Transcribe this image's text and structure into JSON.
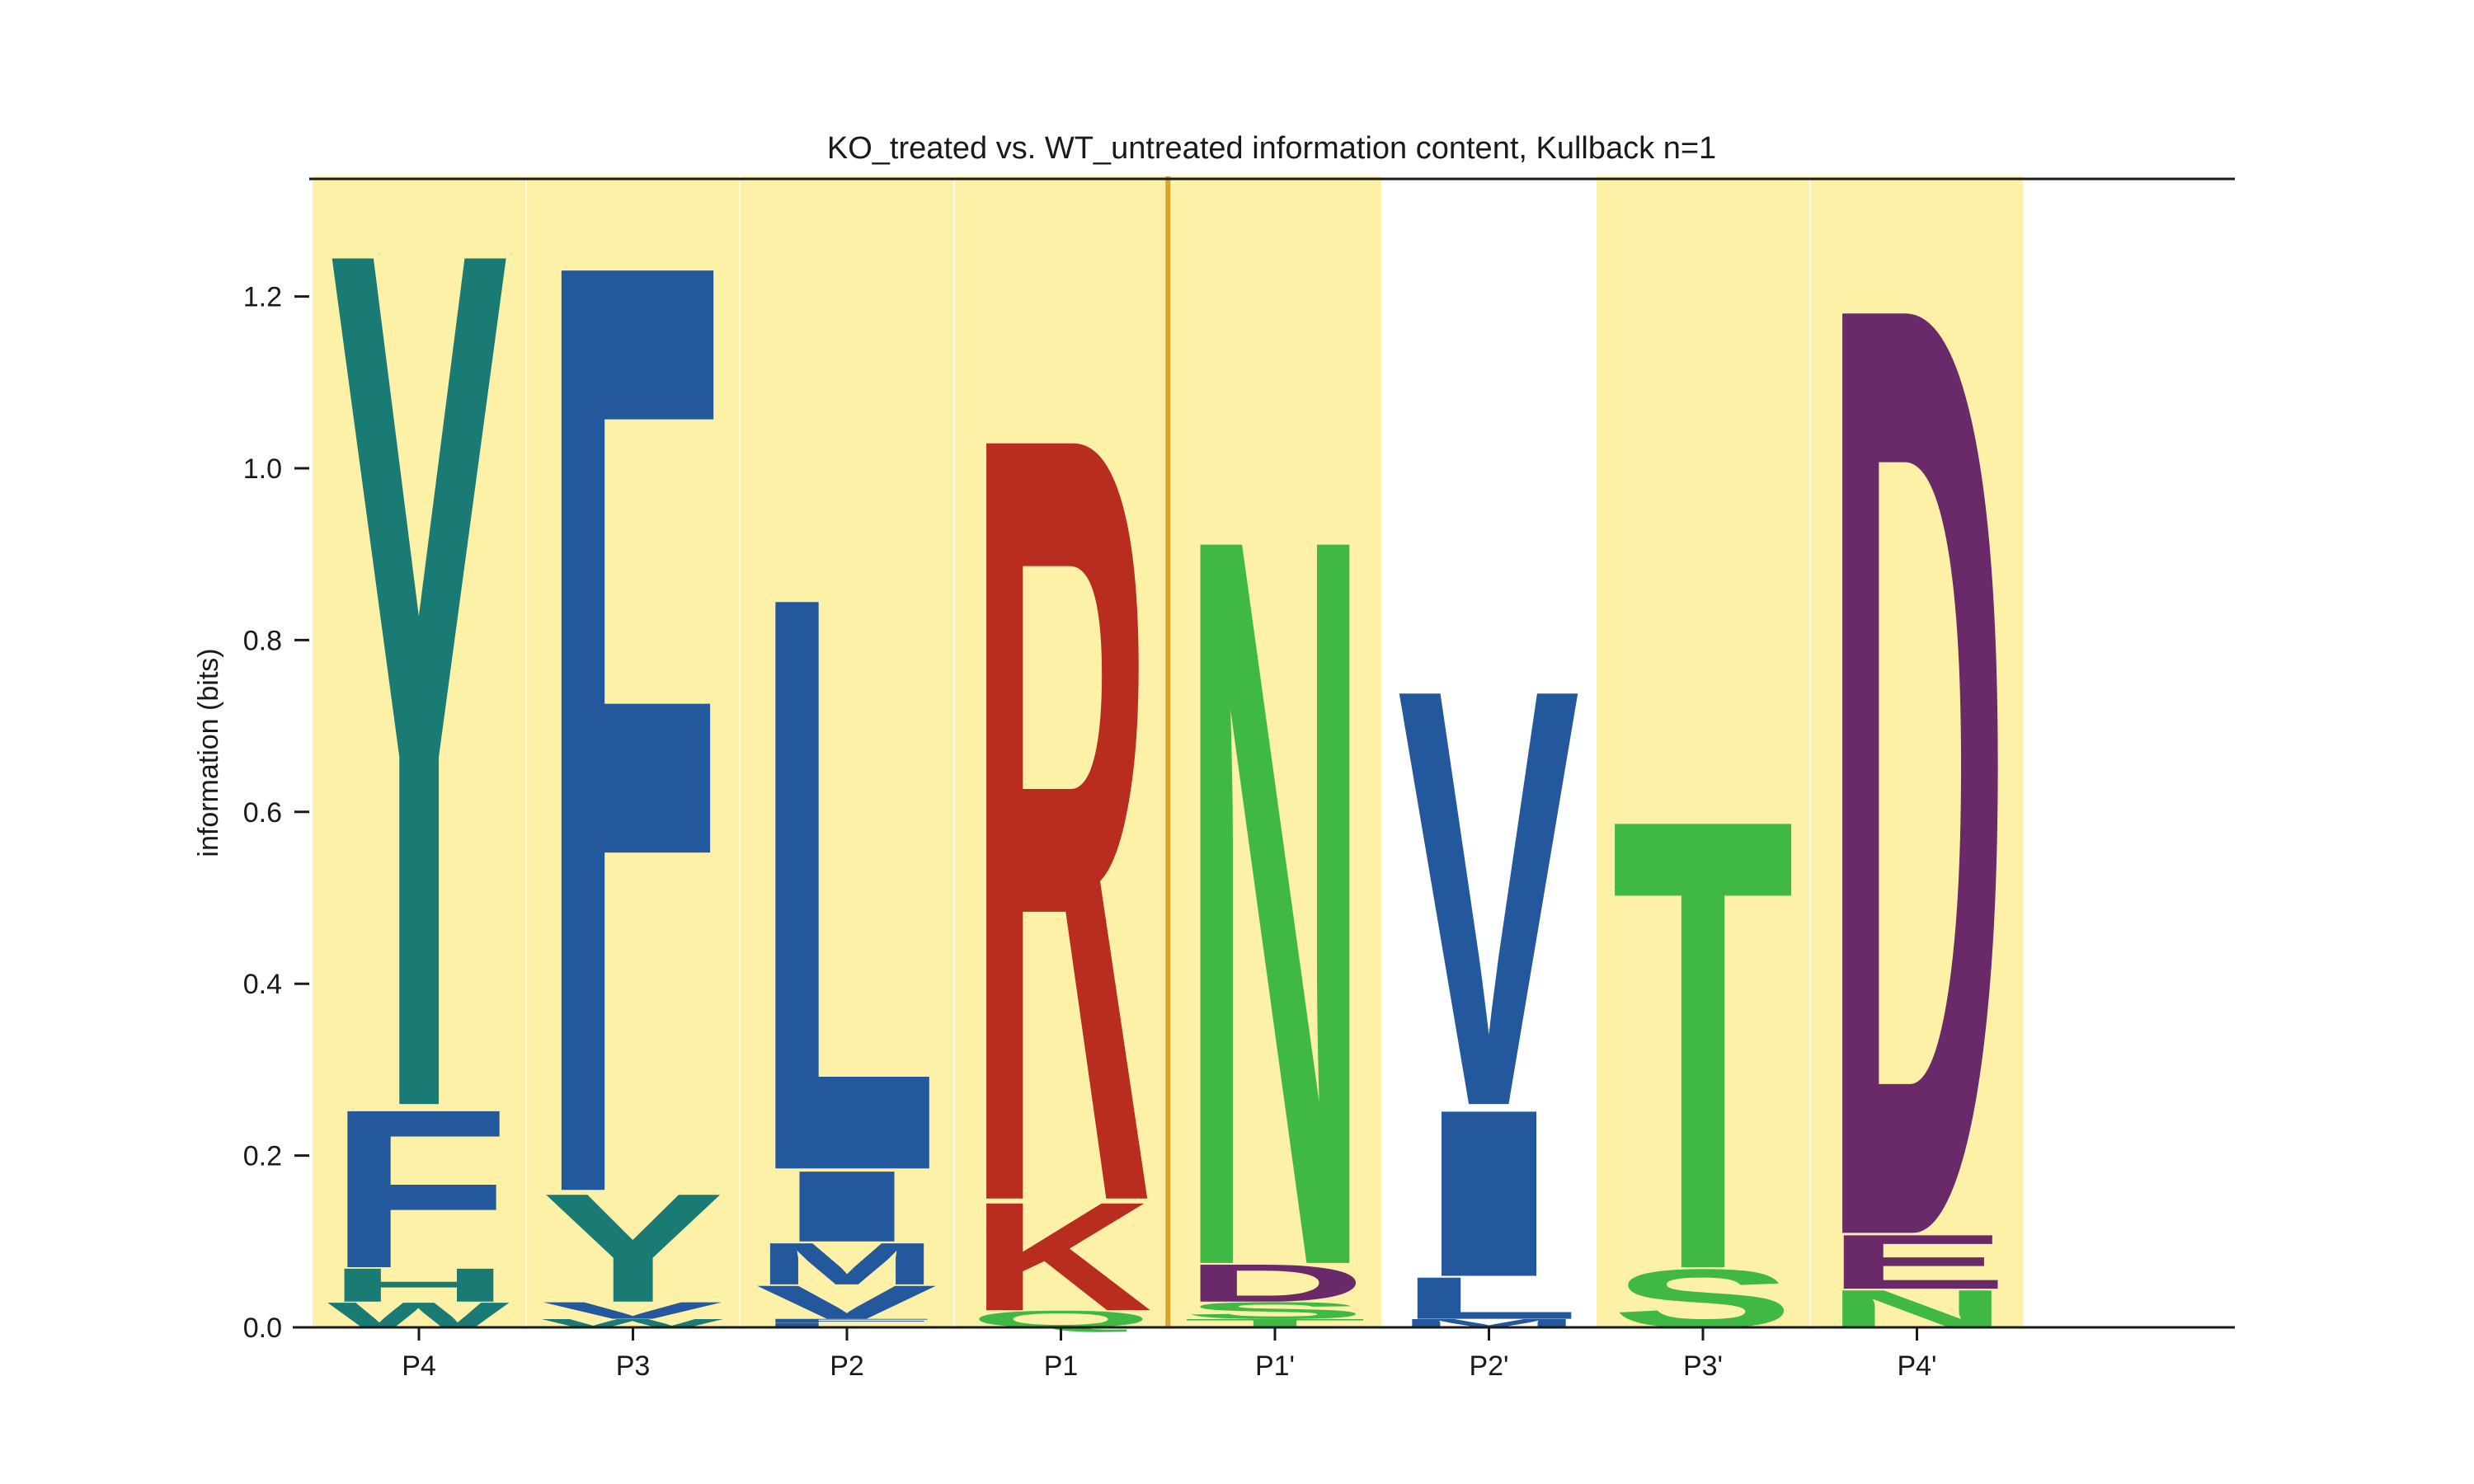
{
  "chart_data": {
    "type": "sequence-logo",
    "title": "KO_treated vs. WT_untreated information content, Kullback n=1",
    "xlabel": "",
    "ylabel": "information (bits)",
    "ylim": [
      0,
      1.34
    ],
    "yticks": [
      "0.0",
      "0.2",
      "0.4",
      "0.6",
      "0.8",
      "1.0",
      "1.2"
    ],
    "positions": [
      "P4",
      "P3",
      "P2",
      "P1",
      "P1'",
      "P2'",
      "P3'",
      "P4'"
    ],
    "highlighted_positions": [
      "P4",
      "P3",
      "P2",
      "P1",
      "P1'",
      "P3'",
      "P4'"
    ],
    "highlight_color": "#fdf1a8",
    "cleavage_line_color": "#d9a62a",
    "cleavage_between": [
      "P1",
      "P1'"
    ],
    "colors": {
      "teal": "#1a7a74",
      "blue": "#23599c",
      "red": "#b82d20",
      "green": "#40b944",
      "purple": "#6a2968"
    },
    "stacks": [
      {
        "position": "P4",
        "letters": [
          {
            "aa": "W",
            "height": 0.03,
            "color": "teal"
          },
          {
            "aa": "H",
            "height": 0.04,
            "color": "teal"
          },
          {
            "aa": "F",
            "height": 0.19,
            "color": "blue"
          },
          {
            "aa": "Y",
            "height": 1.03,
            "color": "teal"
          }
        ]
      },
      {
        "position": "P3",
        "letters": [
          {
            "aa": "W",
            "height": 0.01,
            "color": "teal"
          },
          {
            "aa": "V",
            "height": 0.02,
            "color": "blue"
          },
          {
            "aa": "Y",
            "height": 0.13,
            "color": "teal"
          },
          {
            "aa": "F",
            "height": 1.12,
            "color": "blue"
          }
        ]
      },
      {
        "position": "P2",
        "letters": [
          {
            "aa": "L",
            "height": 0.005,
            "color": "blue"
          },
          {
            "aa": "F",
            "height": 0.005,
            "color": "blue"
          },
          {
            "aa": "V",
            "height": 0.04,
            "color": "blue"
          },
          {
            "aa": "M",
            "height": 0.05,
            "color": "blue"
          },
          {
            "aa": "I",
            "height": 0.085,
            "color": "blue"
          },
          {
            "aa": "L",
            "height": 0.69,
            "color": "blue"
          }
        ]
      },
      {
        "position": "P1",
        "letters": [
          {
            "aa": "Q",
            "height": 0.02,
            "color": "green"
          },
          {
            "aa": "K",
            "height": 0.13,
            "color": "red"
          },
          {
            "aa": "R",
            "height": 0.92,
            "color": "red"
          }
        ]
      },
      {
        "position": "P1'",
        "letters": [
          {
            "aa": "T",
            "height": 0.01,
            "color": "green"
          },
          {
            "aa": "S",
            "height": 0.02,
            "color": "green"
          },
          {
            "aa": "D",
            "height": 0.045,
            "color": "purple"
          },
          {
            "aa": "N",
            "height": 0.875,
            "color": "green"
          }
        ]
      },
      {
        "position": "P2'",
        "letters": [
          {
            "aa": "M",
            "height": 0.01,
            "color": "blue"
          },
          {
            "aa": "L",
            "height": 0.05,
            "color": "blue"
          },
          {
            "aa": "I",
            "height": 0.2,
            "color": "blue"
          },
          {
            "aa": "V",
            "height": 0.5,
            "color": "blue"
          }
        ]
      },
      {
        "position": "P3'",
        "letters": [
          {
            "aa": "S",
            "height": 0.07,
            "color": "green"
          },
          {
            "aa": "T",
            "height": 0.54,
            "color": "green"
          }
        ]
      },
      {
        "position": "P4'",
        "letters": [
          {
            "aa": "N",
            "height": 0.045,
            "color": "green"
          },
          {
            "aa": "E",
            "height": 0.065,
            "color": "purple"
          },
          {
            "aa": "D",
            "height": 1.12,
            "color": "purple"
          }
        ]
      }
    ]
  }
}
